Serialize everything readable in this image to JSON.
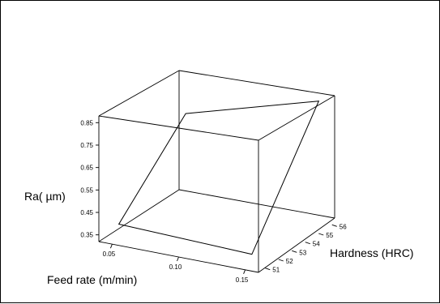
{
  "chart_data": {
    "type": "surface3d",
    "title": "",
    "xlabel": "Feed rate (m/min)",
    "ylabel": "Hardness (HRC)",
    "zlabel": "Ra( µm)",
    "x_ticks": [
      "0.05",
      "0.10",
      "0.15"
    ],
    "y_ticks": [
      "51",
      "52",
      "53",
      "54",
      "55",
      "56"
    ],
    "z_ticks": [
      "0.35",
      "0.45",
      "0.55",
      "0.65",
      "0.75",
      "0.85"
    ],
    "xlim": [
      0.04,
      0.16
    ],
    "ylim": [
      50.5,
      56.5
    ],
    "zlim": [
      0.32,
      0.88
    ],
    "surface": {
      "x": [
        0.05,
        0.15,
        0.15,
        0.05
      ],
      "y": [
        51,
        51,
        56,
        56
      ],
      "z": [
        0.39,
        0.37,
        0.86,
        0.69
      ]
    },
    "grid": false,
    "legend": "none"
  }
}
